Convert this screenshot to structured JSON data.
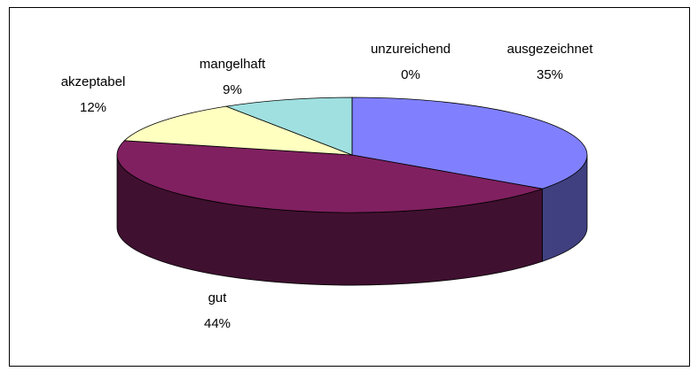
{
  "chart_data": {
    "type": "pie3d",
    "categories": [
      "ausgezeichnet",
      "gut",
      "akzeptabel",
      "mangelhaft",
      "unzureichend"
    ],
    "values": [
      35,
      44,
      12,
      9,
      0
    ],
    "value_labels": [
      "35%",
      "44%",
      "12%",
      "9%",
      "0%"
    ],
    "colors": [
      "#8080ff",
      "#802060",
      "#ffffc0",
      "#a0e0e0",
      "#ff8080"
    ]
  }
}
